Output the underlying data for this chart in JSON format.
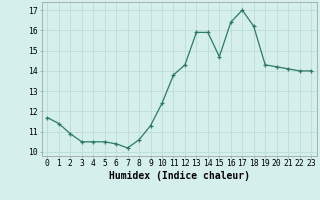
{
  "x": [
    0,
    1,
    2,
    3,
    4,
    5,
    6,
    7,
    8,
    9,
    10,
    11,
    12,
    13,
    14,
    15,
    16,
    17,
    18,
    19,
    20,
    21,
    22,
    23
  ],
  "y": [
    11.7,
    11.4,
    10.9,
    10.5,
    10.5,
    10.5,
    10.4,
    10.2,
    10.6,
    11.3,
    12.4,
    13.8,
    14.3,
    15.9,
    15.9,
    14.7,
    16.4,
    17.0,
    16.2,
    14.3,
    14.2,
    14.1,
    14.0,
    14.0
  ],
  "xlabel": "Humidex (Indice chaleur)",
  "xlim": [
    -0.5,
    23.5
  ],
  "ylim": [
    9.8,
    17.4
  ],
  "yticks": [
    10,
    11,
    12,
    13,
    14,
    15,
    16,
    17
  ],
  "xticks": [
    0,
    1,
    2,
    3,
    4,
    5,
    6,
    7,
    8,
    9,
    10,
    11,
    12,
    13,
    14,
    15,
    16,
    17,
    18,
    19,
    20,
    21,
    22,
    23
  ],
  "line_color": "#2d7a68",
  "marker": "+",
  "bg_color": "#d5efec",
  "grid_color": "#c0deda",
  "label_fontsize": 7,
  "tick_fontsize": 5.8
}
